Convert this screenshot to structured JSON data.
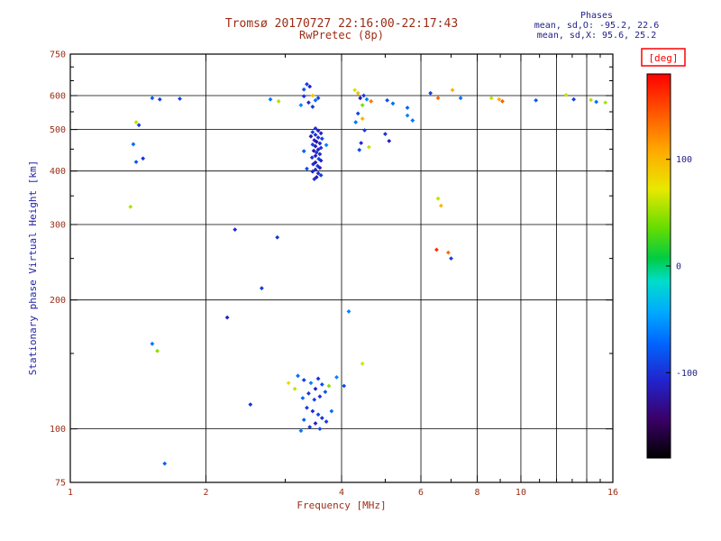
{
  "chart_data": {
    "type": "scatter",
    "title": "Tromsø 20170727 22:16:00-22:17:43",
    "subtitle": "RwPretec (8p)",
    "xlabel": "Frequency [MHz]",
    "ylabel": "Stationary phase Virtual Height [km]",
    "x_scale": "log",
    "y_scale": "log",
    "xlim": [
      1,
      16
    ],
    "ylim": [
      75,
      750
    ],
    "x_ticks_labeled": [
      1,
      2,
      4,
      6,
      8,
      10,
      16
    ],
    "x_minor_ticks": [
      3,
      5,
      7,
      9,
      11,
      12,
      13,
      14,
      15
    ],
    "x_gridlines": [
      2,
      4,
      6,
      8,
      10,
      12,
      14
    ],
    "y_ticks_labeled": [
      75,
      100,
      200,
      300,
      400,
      500,
      600,
      750
    ],
    "y_minor_ticks": [
      150,
      250,
      350,
      450,
      550,
      650,
      700
    ],
    "y_gridlines": [
      100,
      200,
      300,
      400,
      500,
      600
    ],
    "annotations": {
      "phases_title": "Phases",
      "phases_o": "mean, sd,O: -95.2, 22.6",
      "phases_x": "mean, sd,X: 95.6, 25.2"
    },
    "colorbar": {
      "label": "[deg]",
      "range": [
        -180,
        180
      ],
      "ticks": [
        100,
        0,
        -100
      ],
      "stops": [
        [
          0.0,
          "#000000"
        ],
        [
          0.1,
          "#3a0066"
        ],
        [
          0.2,
          "#2222cc"
        ],
        [
          0.3,
          "#0066ff"
        ],
        [
          0.38,
          "#00aaff"
        ],
        [
          0.46,
          "#00ddcc"
        ],
        [
          0.52,
          "#00cc44"
        ],
        [
          0.6,
          "#66dd00"
        ],
        [
          0.7,
          "#e8e800"
        ],
        [
          0.8,
          "#ffaa00"
        ],
        [
          0.9,
          "#ff5500"
        ],
        [
          1.0,
          "#ff0000"
        ]
      ]
    },
    "colors": {
      "title": "#9b2c15",
      "axis_label_y": "#2222aa",
      "tick_label": "#9b2c15",
      "phases_text": "#222288",
      "colorbar_label": "#ff0000",
      "colorbar_tick": "#222288",
      "axis_line": "#000000"
    },
    "points": [
      [
        3.5,
        503,
        -100
      ],
      [
        3.55,
        497,
        -115
      ],
      [
        3.45,
        493,
        -95
      ],
      [
        3.6,
        490,
        -110
      ],
      [
        3.5,
        486,
        -105
      ],
      [
        3.42,
        482,
        -120
      ],
      [
        3.55,
        479,
        -100
      ],
      [
        3.62,
        476,
        -90
      ],
      [
        3.48,
        472,
        -110
      ],
      [
        3.52,
        468,
        -125
      ],
      [
        3.58,
        464,
        -105
      ],
      [
        3.45,
        461,
        -95
      ],
      [
        3.5,
        457,
        -115
      ],
      [
        3.6,
        453,
        -100
      ],
      [
        3.55,
        449,
        -110
      ],
      [
        3.47,
        446,
        -120
      ],
      [
        3.52,
        442,
        -95
      ],
      [
        3.58,
        438,
        -105
      ],
      [
        3.5,
        434,
        -115
      ],
      [
        3.44,
        430,
        -100
      ],
      [
        3.56,
        427,
        -90
      ],
      [
        3.6,
        423,
        -110
      ],
      [
        3.5,
        419,
        -120
      ],
      [
        3.46,
        415,
        -105
      ],
      [
        3.54,
        411,
        -95
      ],
      [
        3.58,
        407,
        -115
      ],
      [
        3.5,
        403,
        -100
      ],
      [
        3.45,
        399,
        -110
      ],
      [
        3.55,
        395,
        -105
      ],
      [
        3.6,
        391,
        -95
      ],
      [
        3.52,
        387,
        -115
      ],
      [
        3.48,
        383,
        -100
      ],
      [
        3.3,
        445,
        -75
      ],
      [
        3.7,
        460,
        -60
      ],
      [
        3.35,
        405,
        -85
      ],
      [
        3.35,
        638,
        -95
      ],
      [
        3.4,
        630,
        -110
      ],
      [
        3.3,
        620,
        -80
      ],
      [
        3.45,
        600,
        95
      ],
      [
        3.3,
        598,
        -100
      ],
      [
        3.55,
        592,
        -90
      ],
      [
        3.5,
        585,
        -70
      ],
      [
        3.38,
        578,
        -105
      ],
      [
        3.25,
        570,
        -60
      ],
      [
        3.45,
        565,
        -95
      ],
      [
        3.2,
        133,
        -70
      ],
      [
        3.3,
        130,
        -95
      ],
      [
        3.42,
        128,
        -60
      ],
      [
        3.55,
        131,
        -100
      ],
      [
        3.62,
        127,
        -85
      ],
      [
        3.5,
        124,
        -110
      ],
      [
        3.38,
        121,
        -95
      ],
      [
        3.28,
        118,
        -70
      ],
      [
        3.48,
        117,
        -90
      ],
      [
        3.58,
        119,
        -100
      ],
      [
        3.68,
        122,
        -80
      ],
      [
        3.75,
        126,
        45
      ],
      [
        3.15,
        124,
        60
      ],
      [
        3.35,
        112,
        -95
      ],
      [
        3.45,
        110,
        -105
      ],
      [
        3.55,
        108,
        -90
      ],
      [
        3.62,
        106,
        -100
      ],
      [
        3.3,
        105,
        -75
      ],
      [
        3.5,
        103,
        -110
      ],
      [
        3.4,
        101,
        -95
      ],
      [
        3.58,
        100,
        -85
      ],
      [
        3.25,
        99,
        -65
      ],
      [
        3.7,
        104,
        -95
      ],
      [
        3.8,
        110,
        -70
      ],
      [
        3.05,
        128,
        80
      ],
      [
        3.9,
        132,
        -60
      ],
      [
        4.05,
        126,
        -85
      ],
      [
        1.52,
        592,
        -75
      ],
      [
        1.58,
        588,
        -90
      ],
      [
        1.75,
        590,
        -90
      ],
      [
        2.78,
        588,
        -65
      ],
      [
        2.9,
        582,
        55
      ],
      [
        4.28,
        618,
        65
      ],
      [
        4.35,
        608,
        100
      ],
      [
        4.48,
        600,
        -95
      ],
      [
        4.4,
        592,
        -115
      ],
      [
        4.55,
        588,
        -60
      ],
      [
        4.65,
        582,
        130
      ],
      [
        5.05,
        585,
        -85
      ],
      [
        5.2,
        575,
        -70
      ],
      [
        4.45,
        570,
        40
      ],
      [
        5.6,
        562,
        -75
      ],
      [
        6.3,
        608,
        -95
      ],
      [
        6.55,
        592,
        135
      ],
      [
        7.05,
        618,
        105
      ],
      [
        7.35,
        592,
        -65
      ],
      [
        8.6,
        592,
        60
      ],
      [
        8.95,
        588,
        105
      ],
      [
        9.1,
        582,
        140
      ],
      [
        10.8,
        585,
        -80
      ],
      [
        12.6,
        602,
        60
      ],
      [
        13.1,
        588,
        -95
      ],
      [
        14.3,
        586,
        55
      ],
      [
        14.7,
        580,
        -70
      ],
      [
        15.4,
        578,
        55
      ],
      [
        1.4,
        520,
        60
      ],
      [
        1.42,
        512,
        -95
      ],
      [
        1.38,
        462,
        -70
      ],
      [
        1.45,
        428,
        -100
      ],
      [
        1.4,
        420,
        -80
      ],
      [
        1.36,
        330,
        55
      ],
      [
        1.52,
        158,
        -65
      ],
      [
        1.56,
        152,
        45
      ],
      [
        1.62,
        83,
        -75
      ],
      [
        2.32,
        292,
        -105
      ],
      [
        2.23,
        182,
        -110
      ],
      [
        2.88,
        280,
        -100
      ],
      [
        2.51,
        114,
        -100
      ],
      [
        2.66,
        213,
        -95
      ],
      [
        6.55,
        345,
        60
      ],
      [
        6.65,
        332,
        100
      ],
      [
        6.9,
        258,
        135
      ],
      [
        7.0,
        250,
        -95
      ],
      [
        6.5,
        262,
        160
      ],
      [
        5.6,
        539,
        -60
      ],
      [
        5.75,
        525,
        -65
      ],
      [
        5.0,
        488,
        -100
      ],
      [
        5.1,
        470,
        -110
      ],
      [
        4.35,
        545,
        -90
      ],
      [
        4.45,
        530,
        105
      ],
      [
        4.3,
        520,
        -65
      ],
      [
        4.5,
        498,
        -95
      ],
      [
        4.42,
        465,
        -105
      ],
      [
        4.6,
        455,
        60
      ],
      [
        4.38,
        448,
        -85
      ],
      [
        4.15,
        188,
        -60
      ],
      [
        4.45,
        142,
        65
      ]
    ]
  }
}
